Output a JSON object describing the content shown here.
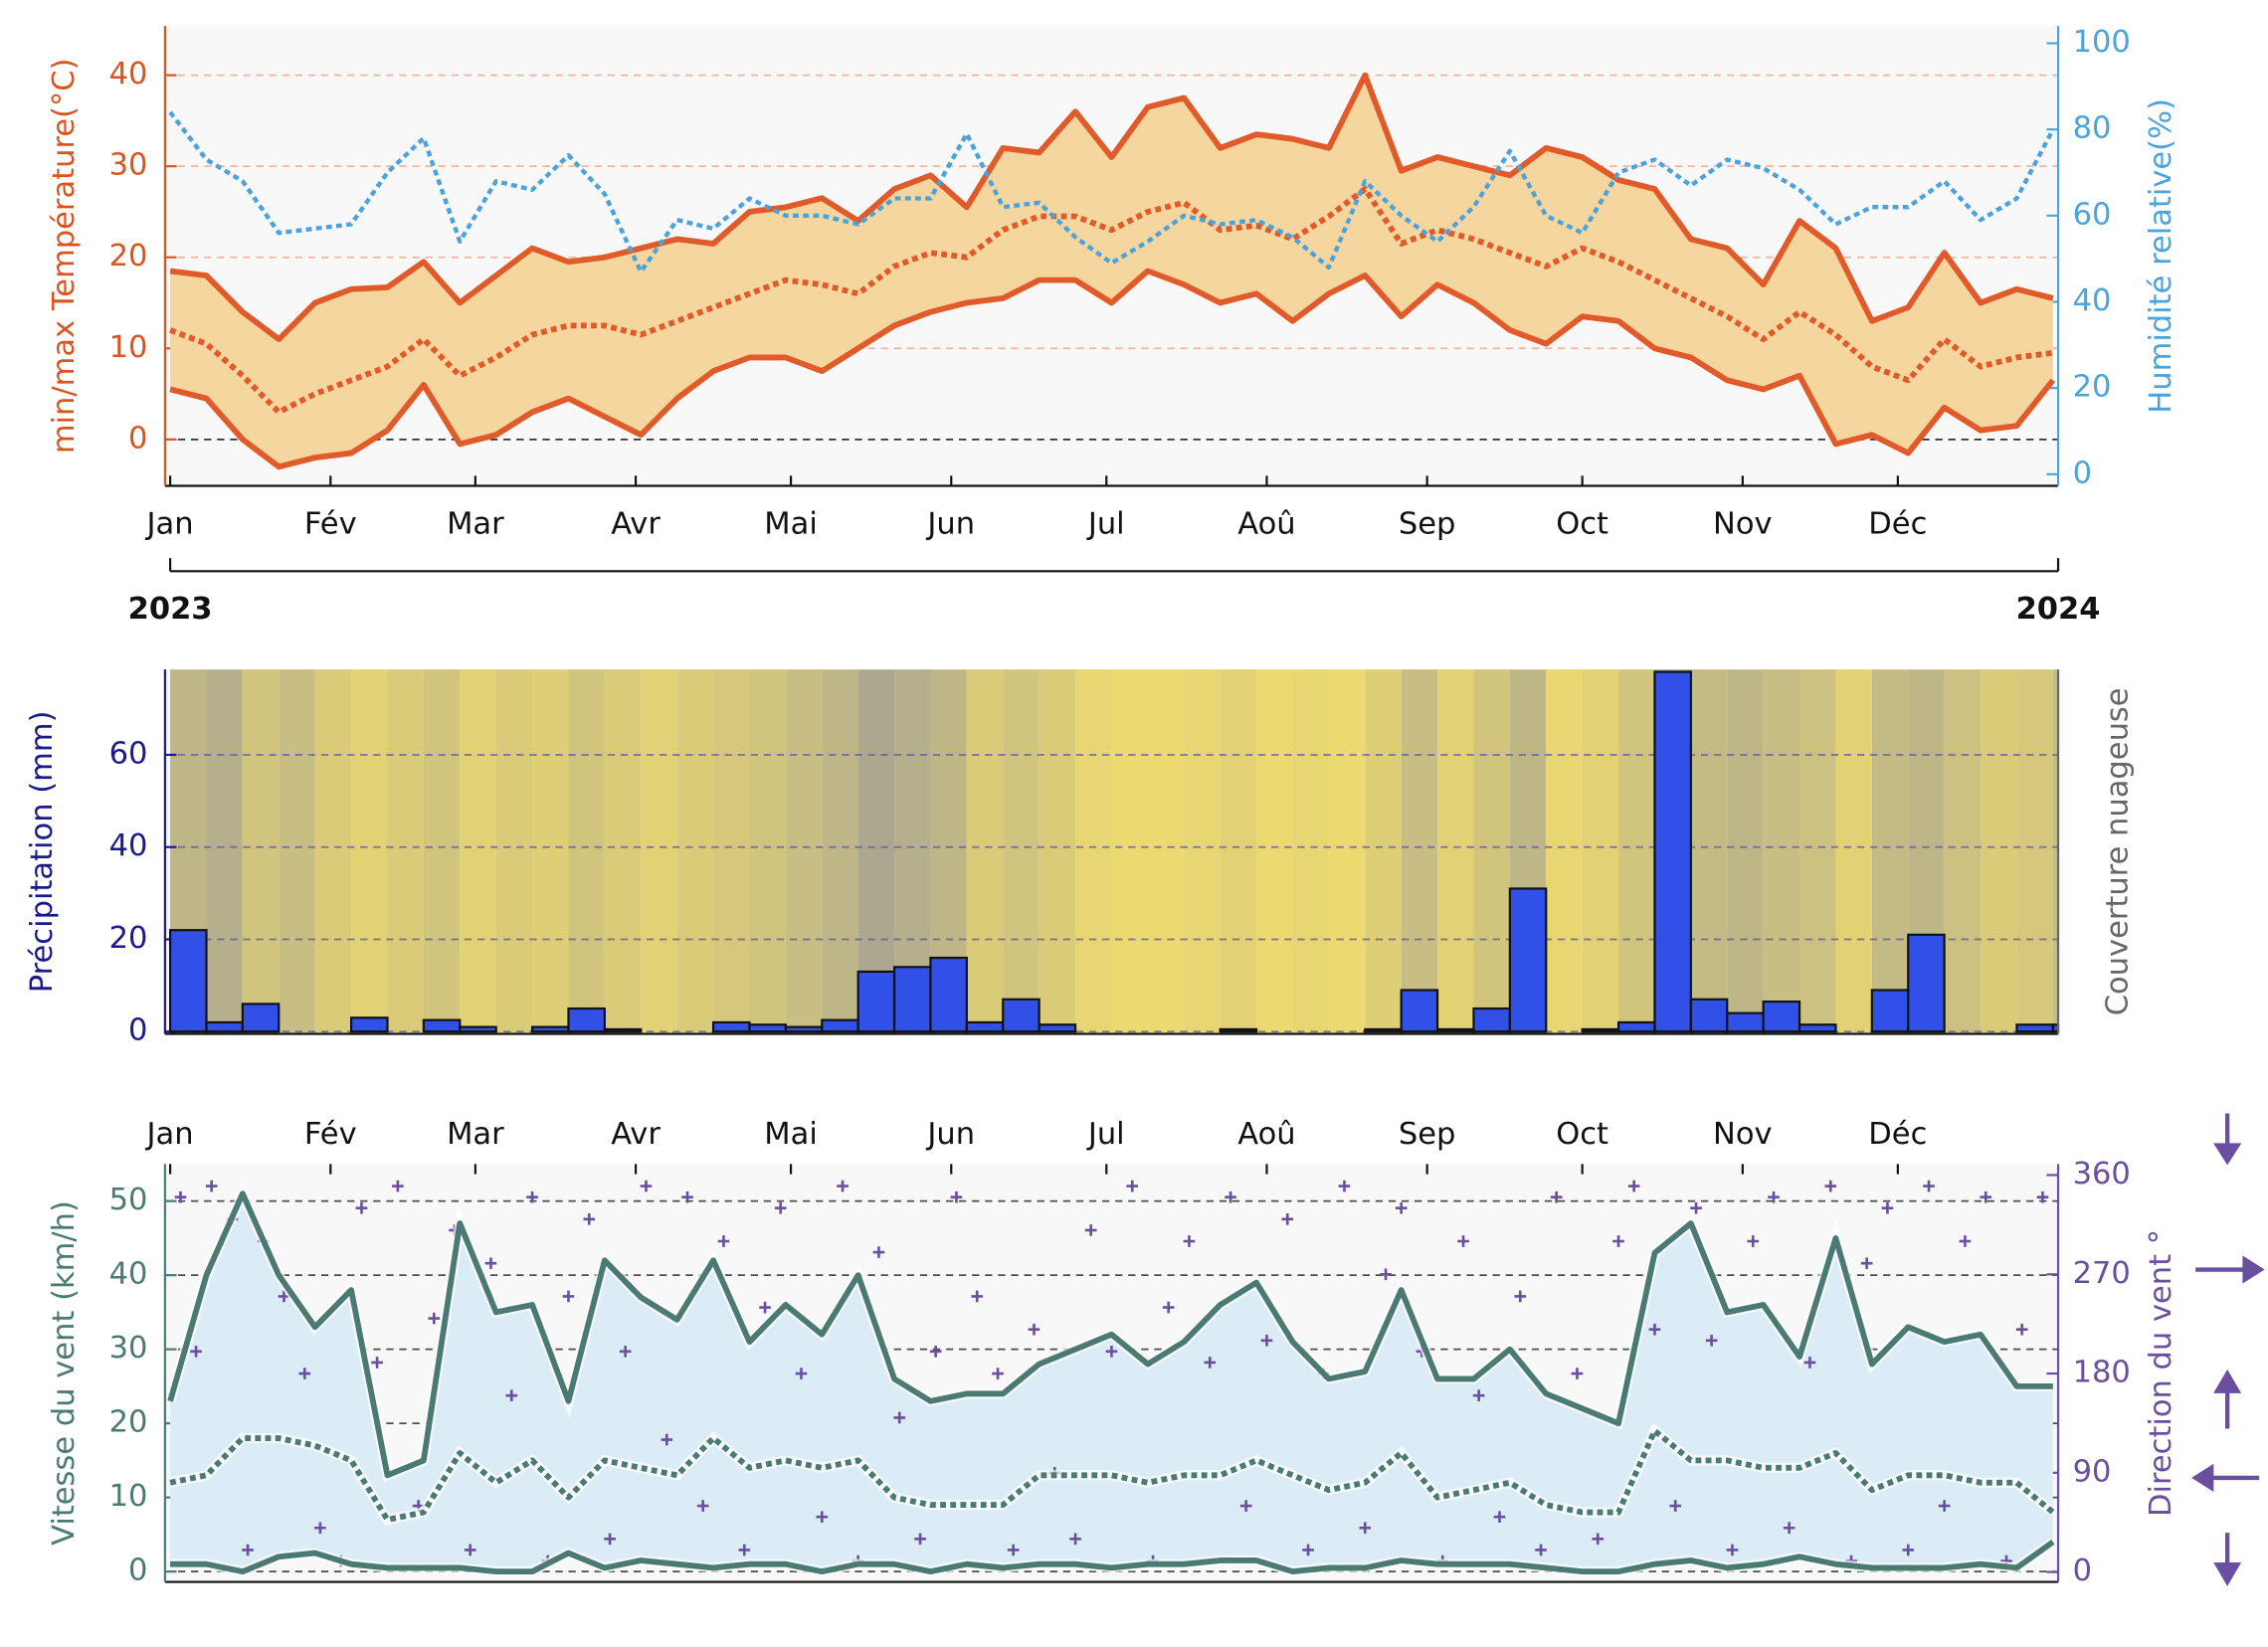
{
  "chart_data": [
    {
      "type": "line",
      "ylabel": "min/max Température(°C)",
      "y2label": "Humidité relative(%)",
      "x": [
        0,
        7,
        14,
        21,
        28,
        35,
        42,
        49,
        56,
        63,
        70,
        77,
        84,
        91,
        98,
        105,
        112,
        119,
        126,
        133,
        140,
        147,
        154,
        161,
        168,
        175,
        182,
        189,
        196,
        203,
        210,
        217,
        224,
        231,
        238,
        245,
        252,
        259,
        266,
        273,
        280,
        287,
        294,
        301,
        308,
        315,
        322,
        329,
        336,
        343,
        350,
        357,
        364
      ],
      "xlim": [
        -1,
        365
      ],
      "xaxis_position": "bottom",
      "xticks": [
        {
          "value": 0,
          "label": "Jan"
        },
        {
          "value": 31,
          "label": "Fév"
        },
        {
          "value": 59,
          "label": "Mar"
        },
        {
          "value": 90,
          "label": "Avr"
        },
        {
          "value": 120,
          "label": "Mai"
        },
        {
          "value": 151,
          "label": "Jun"
        },
        {
          "value": 181,
          "label": "Jul"
        },
        {
          "value": 212,
          "label": "Aoû"
        },
        {
          "value": 243,
          "label": "Sep"
        },
        {
          "value": 273,
          "label": "Oct"
        },
        {
          "value": 304,
          "label": "Nov"
        },
        {
          "value": 334,
          "label": "Déc"
        }
      ],
      "year_ticks": [
        {
          "value": 0,
          "label": "2023"
        },
        {
          "value": 365,
          "label": "2024"
        }
      ],
      "ylim": [
        -5.1,
        45.4
      ],
      "yticks": [
        0,
        10,
        20,
        30,
        40
      ],
      "y_color": "#d9541e",
      "y2lim": [
        -2.7,
        104
      ],
      "y2ticks": [
        0,
        20,
        40,
        60,
        80,
        100
      ],
      "y2_color": "#4ba3dd",
      "grid": true,
      "grid_color": "#f0a585",
      "zero_line_color": "#000000",
      "band_color": "#f6d69f",
      "series": [
        {
          "color": "#e05a2a",
          "style": "solid",
          "values": [
            18.5,
            18,
            14,
            11,
            15,
            16.5,
            16.7,
            19.5,
            15,
            18,
            21,
            19.5,
            20,
            21,
            22,
            21.5,
            25,
            25.5,
            26.5,
            24,
            27.5,
            29,
            25.5,
            32,
            31.5,
            36,
            31,
            36.5,
            37.5,
            32,
            33.5,
            33,
            32,
            40,
            29.5,
            31,
            30,
            29,
            32,
            31,
            28.5,
            27.5,
            22,
            21,
            17,
            24,
            21,
            13,
            14.5,
            20.5,
            15,
            16.5,
            15.5
          ]
        },
        {
          "color": "#e05a2a",
          "style": "dotted",
          "values": [
            12,
            10.5,
            7,
            3,
            5,
            6.5,
            8,
            11,
            7,
            9,
            11.5,
            12.5,
            12.5,
            11.5,
            13,
            14.5,
            16,
            17.5,
            17,
            16,
            19,
            20.5,
            20,
            23,
            24.5,
            24.5,
            23,
            25,
            26,
            23,
            23.5,
            22,
            24.5,
            27.5,
            21.5,
            23,
            22,
            20.5,
            19,
            21,
            19.5,
            17.5,
            15.5,
            13.5,
            11,
            14,
            11.5,
            8,
            6.5,
            11,
            8,
            9,
            9.5
          ]
        },
        {
          "color": "#e05a2a",
          "style": "solid",
          "values": [
            5.5,
            4.5,
            0,
            -3,
            -2,
            -1.5,
            1,
            6,
            -0.5,
            0.5,
            3,
            4.5,
            2.5,
            0.5,
            4.5,
            7.5,
            9,
            9,
            7.5,
            10,
            12.5,
            14,
            15,
            15.5,
            17.5,
            17.5,
            15,
            18.5,
            17,
            15,
            16,
            13,
            16,
            18,
            13.5,
            17,
            15,
            12,
            10.5,
            13.5,
            13,
            10,
            9,
            6.5,
            5.5,
            7,
            -0.5,
            0.5,
            -1.5,
            3.5,
            1,
            1.5,
            6.5
          ]
        },
        {
          "color": "#4ba3dd",
          "style": "dotted",
          "axis": "y2",
          "values": [
            84,
            73,
            68,
            56,
            57,
            58,
            70,
            78,
            54,
            68,
            66,
            74,
            65,
            47,
            59,
            57,
            64,
            60,
            60,
            58,
            64,
            64,
            79,
            62,
            63,
            55,
            49,
            54,
            60,
            58,
            59,
            55,
            48,
            68,
            60,
            54,
            62,
            75,
            60,
            56,
            70,
            73,
            67,
            73,
            71,
            66,
            58,
            62,
            62,
            68,
            59,
            64,
            80
          ]
        }
      ]
    },
    {
      "type": "histogram",
      "ylabel": "Précipitation (mm)",
      "y2label": "Couverture nuageuse",
      "bins": [
        0,
        7,
        14,
        21,
        28,
        35,
        42,
        49,
        56,
        63,
        70,
        77,
        84,
        91,
        98,
        105,
        112,
        119,
        126,
        133,
        140,
        147,
        154,
        161,
        168,
        175,
        182,
        189,
        196,
        203,
        210,
        217,
        224,
        231,
        238,
        245,
        252,
        259,
        266,
        273,
        280,
        287,
        294,
        301,
        308,
        315,
        322,
        329,
        336,
        343,
        350,
        357,
        364,
        365
      ],
      "xlim": [
        -1,
        365
      ],
      "ylim": [
        -0.5,
        78.5
      ],
      "yticks": [
        0,
        20,
        40,
        60
      ],
      "y_color": "#1a1a8c",
      "y2_color": "#666666",
      "grid": true,
      "grid_color": "#5a5ab0",
      "color": "#3050e8",
      "values": [
        22,
        2,
        6,
        0,
        0,
        3,
        0,
        2.5,
        1,
        0,
        1,
        5,
        0.5,
        0,
        0,
        2,
        1.5,
        1,
        2.5,
        13,
        14,
        16,
        2,
        7,
        1.5,
        0,
        0,
        0,
        0,
        0.5,
        0,
        0,
        0,
        0.5,
        9,
        0.5,
        5,
        31,
        0,
        0.5,
        2,
        78,
        7,
        4,
        6.5,
        1.5,
        0,
        9,
        21,
        0,
        0,
        1.5,
        1.5
      ],
      "cloud_cover": [
        60,
        70,
        40,
        50,
        30,
        20,
        30,
        40,
        20,
        30,
        25,
        40,
        30,
        20,
        30,
        35,
        40,
        50,
        60,
        80,
        70,
        60,
        30,
        40,
        30,
        15,
        10,
        10,
        15,
        20,
        10,
        15,
        10,
        25,
        50,
        20,
        40,
        60,
        15,
        20,
        40,
        70,
        55,
        60,
        50,
        45,
        20,
        55,
        60,
        45,
        30,
        35,
        50
      ],
      "cloud_colors": [
        "#f5e06a",
        "#9a9a9a"
      ]
    },
    {
      "type": "line",
      "ylabel": "Vitesse du vent (km/h)",
      "y2label": "Direction du vent °",
      "x": [
        0,
        7,
        14,
        21,
        28,
        35,
        42,
        49,
        56,
        63,
        70,
        77,
        84,
        91,
        98,
        105,
        112,
        119,
        126,
        133,
        140,
        147,
        154,
        161,
        168,
        175,
        182,
        189,
        196,
        203,
        210,
        217,
        224,
        231,
        238,
        245,
        252,
        259,
        266,
        273,
        280,
        287,
        294,
        301,
        308,
        315,
        322,
        329,
        336,
        343,
        350,
        357,
        364
      ],
      "xlim": [
        -1,
        365
      ],
      "xaxis_position": "top",
      "xticks": [
        {
          "value": 0,
          "label": "Jan"
        },
        {
          "value": 31,
          "label": "Fév"
        },
        {
          "value": 59,
          "label": "Mar"
        },
        {
          "value": 90,
          "label": "Avr"
        },
        {
          "value": 120,
          "label": "Mai"
        },
        {
          "value": 151,
          "label": "Jun"
        },
        {
          "value": 181,
          "label": "Jul"
        },
        {
          "value": 212,
          "label": "Aoû"
        },
        {
          "value": 243,
          "label": "Sep"
        },
        {
          "value": 273,
          "label": "Oct"
        },
        {
          "value": 304,
          "label": "Nov"
        },
        {
          "value": 334,
          "label": "Déc"
        }
      ],
      "ylim": [
        -1.4,
        55
      ],
      "yticks": [
        0,
        10,
        20,
        30,
        40,
        50
      ],
      "y_color": "#4a7a72",
      "y2lim": [
        -9,
        370
      ],
      "y2ticks": [
        0,
        90,
        180,
        270,
        360
      ],
      "y2_color": "#6a4fa0",
      "grid": true,
      "grid_color": "#222222",
      "band_color": "#dcecf7",
      "series": [
        {
          "color": "#4a7a72",
          "style": "solid",
          "values": [
            23,
            40,
            51,
            40,
            33,
            38,
            13,
            15,
            47,
            35,
            36,
            23,
            42,
            37,
            34,
            42,
            31,
            36,
            32,
            40,
            26,
            23,
            24,
            24,
            28,
            30,
            32,
            28,
            31,
            36,
            39,
            31,
            26,
            27,
            38,
            26,
            26,
            30,
            24,
            22,
            20,
            43,
            47,
            35,
            36,
            29,
            45,
            28,
            33,
            31,
            32,
            25,
            25
          ]
        },
        {
          "color": "#4a7a72",
          "style": "dotted",
          "values": [
            12,
            13,
            18,
            18,
            17,
            15,
            7,
            8,
            16,
            12,
            15,
            10,
            15,
            14,
            13,
            18,
            14,
            15,
            14,
            15,
            10,
            9,
            9,
            9,
            13,
            13,
            13,
            12,
            13,
            13,
            15,
            13,
            11,
            12,
            16,
            10,
            11,
            12,
            9,
            8,
            8,
            19,
            15,
            15,
            14,
            14,
            16,
            11,
            13,
            13,
            12,
            12,
            8
          ]
        },
        {
          "color": "#4a7a72",
          "style": "solid",
          "values": [
            1,
            1,
            0,
            2,
            2.5,
            1,
            0.5,
            0.5,
            0.5,
            0,
            0,
            2.5,
            0.5,
            1.5,
            1,
            0.5,
            1,
            1,
            0,
            1,
            1,
            0,
            1,
            0.5,
            1,
            1,
            0.5,
            1,
            1,
            1.5,
            1.5,
            0,
            0.5,
            0.5,
            1.5,
            1,
            1,
            1,
            0.5,
            0,
            0,
            1,
            1.5,
            0.5,
            1,
            2,
            1,
            0.5,
            0.5,
            0.5,
            1,
            0.5,
            4
          ]
        },
        {
          "type": "scatter",
          "color": "#6a4fa0",
          "axis": "y2",
          "x": [
            2,
            5,
            8,
            12,
            15,
            18,
            22,
            26,
            29,
            33,
            37,
            40,
            44,
            48,
            51,
            55,
            58,
            62,
            66,
            70,
            73,
            77,
            81,
            85,
            88,
            92,
            96,
            100,
            103,
            107,
            111,
            115,
            118,
            122,
            126,
            130,
            133,
            137,
            141,
            145,
            148,
            152,
            156,
            160,
            163,
            167,
            171,
            175,
            178,
            182,
            186,
            190,
            193,
            197,
            201,
            205,
            208,
            212,
            216,
            220,
            223,
            227,
            231,
            235,
            238,
            242,
            246,
            250,
            253,
            257,
            261,
            265,
            268,
            272,
            276,
            280,
            283,
            287,
            291,
            295,
            298,
            302,
            306,
            310,
            313,
            317,
            321,
            325,
            328,
            332,
            336,
            340,
            343,
            347,
            351,
            355,
            358,
            362
          ],
          "values": [
            340,
            200,
            350,
            320,
            20,
            300,
            250,
            180,
            40,
            10,
            330,
            190,
            350,
            60,
            230,
            310,
            20,
            280,
            160,
            340,
            10,
            250,
            320,
            30,
            200,
            350,
            120,
            340,
            60,
            300,
            20,
            240,
            330,
            180,
            50,
            350,
            10,
            290,
            140,
            30,
            200,
            340,
            250,
            180,
            20,
            220,
            90,
            30,
            310,
            200,
            350,
            10,
            240,
            300,
            190,
            340,
            60,
            210,
            320,
            20,
            180,
            350,
            40,
            270,
            330,
            200,
            10,
            300,
            160,
            50,
            250,
            20,
            340,
            180,
            30,
            300,
            350,
            220,
            60,
            330,
            210,
            20,
            300,
            340,
            40,
            190,
            350,
            10,
            280,
            330,
            20,
            350,
            60,
            300,
            340,
            10,
            220,
            340
          ]
        }
      ]
    }
  ]
}
